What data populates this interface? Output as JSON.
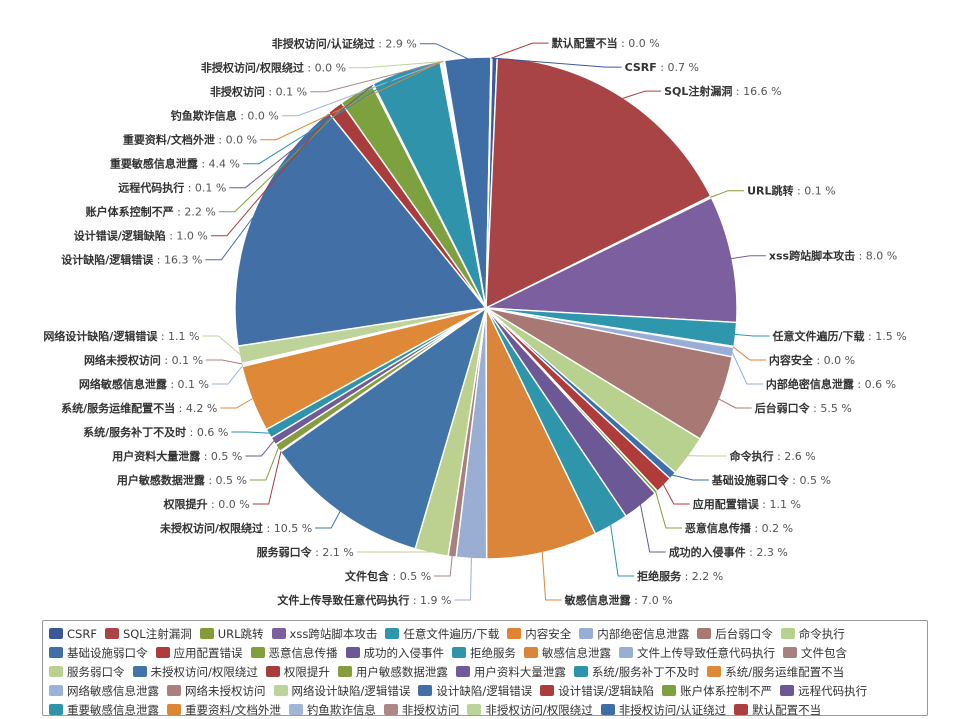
{
  "chart_data": {
    "type": "pie",
    "title": "",
    "unit": "%",
    "series": [
      {
        "name": "CSRF",
        "value": 0.7,
        "color": "#3b5998"
      },
      {
        "name": "SQL注射漏洞",
        "value": 16.6,
        "color": "#a94446"
      },
      {
        "name": "URL跳转",
        "value": 0.1,
        "color": "#849b38"
      },
      {
        "name": "xss跨站脚本攻击",
        "value": 8.0,
        "color": "#7b5f9e"
      },
      {
        "name": "任意文件遍历/下载",
        "value": 1.5,
        "color": "#2f97ad"
      },
      {
        "name": "内容安全",
        "value": 0.0,
        "color": "#e08332"
      },
      {
        "name": "内部绝密信息泄露",
        "value": 0.6,
        "color": "#98aed6"
      },
      {
        "name": "后台弱口令",
        "value": 5.5,
        "color": "#a87875"
      },
      {
        "name": "命令执行",
        "value": 2.6,
        "color": "#b9d18f"
      },
      {
        "name": "基础设施弱口令",
        "value": 0.5,
        "color": "#3e6fa8"
      },
      {
        "name": "应用配置错误",
        "value": 1.1,
        "color": "#b03b3b"
      },
      {
        "name": "恶意信息传播",
        "value": 0.2,
        "color": "#7fa03c"
      },
      {
        "name": "成功的入侵事件",
        "value": 2.3,
        "color": "#6c5894"
      },
      {
        "name": "拒绝服务",
        "value": 2.2,
        "color": "#2f95aa"
      },
      {
        "name": "敏感信息泄露",
        "value": 7.0,
        "color": "#db853a"
      },
      {
        "name": "文件上传导致任意代码执行",
        "value": 1.9,
        "color": "#9aaed3"
      },
      {
        "name": "文件包含",
        "value": 0.5,
        "color": "#a7817f"
      },
      {
        "name": "服务弱口令",
        "value": 2.1,
        "color": "#bcd190"
      },
      {
        "name": "未授权访问/权限绕过",
        "value": 10.5,
        "color": "#4374a8"
      },
      {
        "name": "权限提升",
        "value": 0.0,
        "color": "#a63d3d"
      },
      {
        "name": "用户敏感数据泄露",
        "value": 0.5,
        "color": "#859d3e"
      },
      {
        "name": "用户资料大量泄露",
        "value": 0.5,
        "color": "#6f5b97"
      },
      {
        "name": "系统/服务补丁不及时",
        "value": 0.6,
        "color": "#2f93ab"
      },
      {
        "name": "系统/服务运维配置不当",
        "value": 4.2,
        "color": "#df8838"
      },
      {
        "name": "网络敏感信息泄露",
        "value": 0.1,
        "color": "#9cb2d8"
      },
      {
        "name": "网络未授权访问",
        "value": 0.1,
        "color": "#aa7f7d"
      },
      {
        "name": "网络设计缺陷/逻辑错误",
        "value": 1.1,
        "color": "#bdd39a"
      },
      {
        "name": "设计缺陷/逻辑错误",
        "value": 16.3,
        "color": "#4270a6"
      },
      {
        "name": "设计错误/逻辑缺陷",
        "value": 1.0,
        "color": "#ab3c3e"
      },
      {
        "name": "账户体系控制不严",
        "value": 2.2,
        "color": "#7ea13f"
      },
      {
        "name": "远程代码执行",
        "value": 0.1,
        "color": "#6e5794"
      },
      {
        "name": "重要敏感信息泄露",
        "value": 4.4,
        "color": "#2e93ab"
      },
      {
        "name": "重要资料/文档外泄",
        "value": 0.0,
        "color": "#dd8636"
      },
      {
        "name": "钓鱼欺诈信息",
        "value": 0.0,
        "color": "#a1b5d9"
      },
      {
        "name": "非授权访问",
        "value": 0.1,
        "color": "#ad8886"
      },
      {
        "name": "非授权访问/权限绕过",
        "value": 0.0,
        "color": "#bcd39a"
      },
      {
        "name": "非授权访问/认证绕过",
        "value": 2.9,
        "color": "#3f6ea7"
      },
      {
        "name": "默认配置不当",
        "value": 0.0,
        "color": "#aa3f3f"
      }
    ],
    "legend_position": "bottom"
  }
}
